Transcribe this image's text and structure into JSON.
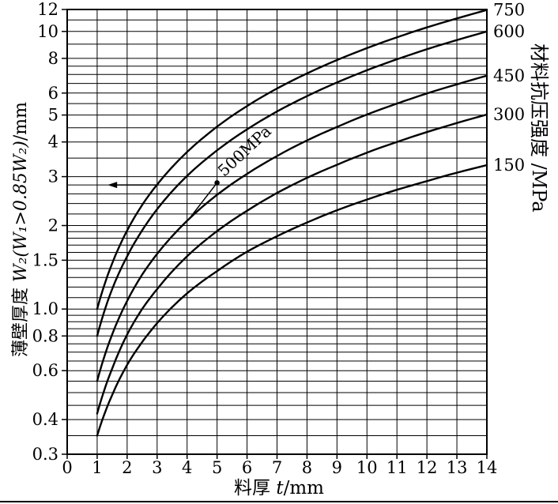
{
  "figure": {
    "background": "#ffffff",
    "ink": "#000000"
  },
  "chart_data": {
    "type": "line",
    "title": "",
    "x_axis": {
      "label_prefix": "料厚 ",
      "label_var": "t",
      "label_suffix": "/mm",
      "min": 0,
      "max": 14,
      "ticks": [
        0,
        1,
        2,
        3,
        4,
        5,
        6,
        7,
        8,
        9,
        10,
        11,
        12,
        13,
        14
      ]
    },
    "y_axis": {
      "label_prefix": "薄壁厚度 ",
      "label_formula": "W₂(W₁>0.85W₂)",
      "label_suffix": "/mm",
      "scale": "log",
      "min": 0.3,
      "max": 12,
      "tick_values": [
        12,
        10,
        8,
        6,
        5,
        4,
        3,
        2,
        1.5,
        1.0,
        0.8,
        0.6,
        0.4,
        0.3
      ],
      "tick_labels": [
        "12",
        "10",
        "8",
        "6",
        "5",
        "4",
        "3",
        "2",
        "1.5",
        "1.0",
        "0.8",
        "0.6",
        "0.4",
        "0.3"
      ],
      "grid_values": [
        0.35,
        0.4,
        0.45,
        0.5,
        0.55,
        0.6,
        0.65,
        0.7,
        0.75,
        0.8,
        0.85,
        0.9,
        0.95,
        1.0,
        1.1,
        1.2,
        1.3,
        1.4,
        1.5,
        1.6,
        1.7,
        1.8,
        1.9,
        2.0,
        2.2,
        2.4,
        2.6,
        2.8,
        3.0,
        3.5,
        4.0,
        4.5,
        5.0,
        5.5,
        6.0,
        6.5,
        7.0,
        7.5,
        8.0,
        9.0,
        10,
        11
      ]
    },
    "y2_axis": {
      "label": "材料抗压强度 /MPa"
    },
    "series": [
      {
        "name": "750",
        "x": [
          1,
          1.5,
          2,
          2.5,
          3,
          4,
          5,
          6,
          7,
          8,
          9,
          10,
          11,
          12,
          13,
          14
        ],
        "y": [
          1.0,
          1.46,
          1.92,
          2.37,
          2.81,
          3.68,
          4.54,
          5.39,
          6.23,
          7.06,
          7.89,
          8.71,
          9.53,
          10.34,
          11.14,
          11.95
        ]
      },
      {
        "name": "600",
        "x": [
          1,
          1.5,
          2,
          2.5,
          3,
          4,
          5,
          6,
          7,
          8,
          9,
          10,
          11,
          12,
          13,
          14
        ],
        "y": [
          0.8,
          1.18,
          1.55,
          1.92,
          2.29,
          3.02,
          3.73,
          4.44,
          5.15,
          5.85,
          6.55,
          7.25,
          7.94,
          8.63,
          9.31,
          10.0
        ]
      },
      {
        "name": "450",
        "x": [
          1,
          1.5,
          2,
          2.5,
          3,
          4,
          5,
          6,
          7,
          8,
          9,
          10,
          11,
          12,
          13,
          14
        ],
        "y": [
          0.55,
          0.81,
          1.07,
          1.33,
          1.58,
          2.08,
          2.58,
          3.07,
          3.56,
          4.05,
          4.53,
          5.02,
          5.5,
          5.98,
          6.45,
          6.93
        ]
      },
      {
        "name": "300",
        "x": [
          1,
          1.5,
          2,
          2.5,
          3,
          4,
          5,
          6,
          7,
          8,
          9,
          10,
          11,
          12,
          13,
          14
        ],
        "y": [
          0.42,
          0.61,
          0.81,
          1.0,
          1.18,
          1.55,
          1.91,
          2.26,
          2.62,
          2.97,
          3.31,
          3.66,
          4.0,
          4.34,
          4.68,
          5.02
        ]
      },
      {
        "name": "150",
        "x": [
          1,
          1.5,
          2,
          2.5,
          3,
          4,
          5,
          6,
          7,
          8,
          9,
          10,
          11,
          12,
          13,
          14
        ],
        "y": [
          0.35,
          0.49,
          0.63,
          0.76,
          0.89,
          1.14,
          1.37,
          1.61,
          1.83,
          2.05,
          2.27,
          2.48,
          2.69,
          2.89,
          3.1,
          3.3
        ]
      }
    ],
    "annotation": {
      "label": "500MPa",
      "point": {
        "t": 5,
        "w": 2.85
      },
      "leader_from": {
        "t": 4.05,
        "w": 2.1
      },
      "arrow": {
        "w": 2.8,
        "t_start": 3.05,
        "t_end": 1.35
      },
      "angle_deg": -43
    }
  }
}
